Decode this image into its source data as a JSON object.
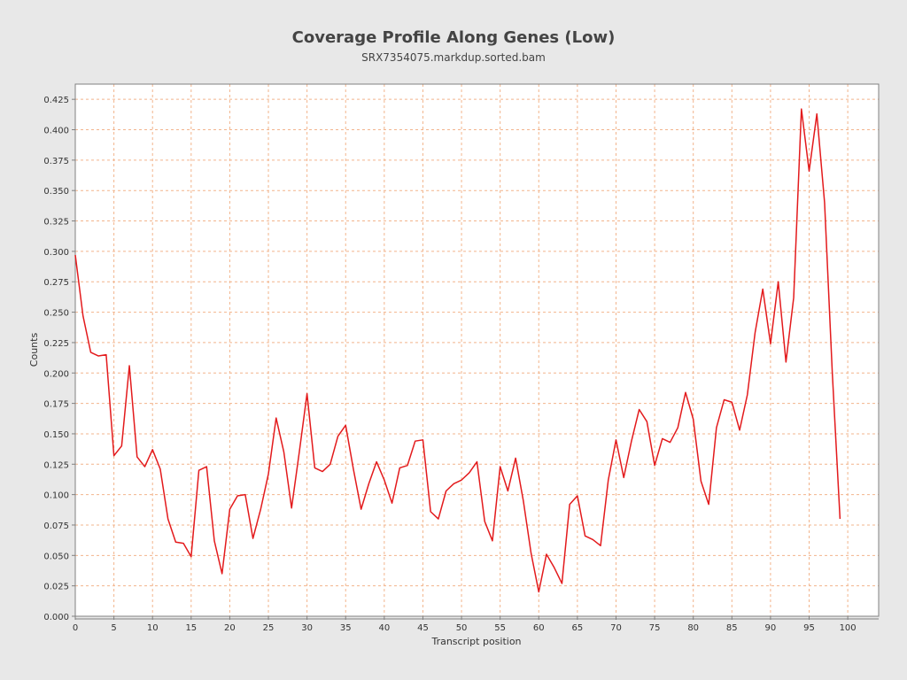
{
  "chart_data": {
    "type": "line",
    "title": "Coverage Profile Along Genes (Low)",
    "subtitle": "SRX7354075.markdup.sorted.bam",
    "xlabel": "Transcript position",
    "ylabel": "Counts",
    "xlim": [
      0,
      104
    ],
    "ylim": [
      0,
      0.4375
    ],
    "xticks": [
      0,
      5,
      10,
      15,
      20,
      25,
      30,
      35,
      40,
      45,
      50,
      55,
      60,
      65,
      70,
      75,
      80,
      85,
      90,
      95,
      100
    ],
    "yticks": [
      "0.000",
      "0.025",
      "0.050",
      "0.075",
      "0.100",
      "0.125",
      "0.150",
      "0.175",
      "0.200",
      "0.225",
      "0.250",
      "0.275",
      "0.300",
      "0.325",
      "0.350",
      "0.375",
      "0.400",
      "0.425"
    ],
    "grid": true,
    "line_color": "#e31a1c",
    "grid_color": "#f2b48c",
    "x": [
      0,
      1,
      2,
      3,
      4,
      5,
      6,
      7,
      8,
      9,
      10,
      11,
      12,
      13,
      14,
      15,
      16,
      17,
      18,
      19,
      20,
      21,
      22,
      23,
      24,
      25,
      26,
      27,
      28,
      29,
      30,
      31,
      32,
      33,
      34,
      35,
      36,
      37,
      38,
      39,
      40,
      41,
      42,
      43,
      44,
      45,
      46,
      47,
      48,
      49,
      50,
      51,
      52,
      53,
      54,
      55,
      56,
      57,
      58,
      59,
      60,
      61,
      62,
      63,
      64,
      65,
      66,
      67,
      68,
      69,
      70,
      71,
      72,
      73,
      74,
      75,
      76,
      77,
      78,
      79,
      80,
      81,
      82,
      83,
      84,
      85,
      86,
      87,
      88,
      89,
      90,
      91,
      92,
      93,
      94,
      95,
      96,
      97,
      98,
      99
    ],
    "values": [
      0.297,
      0.247,
      0.217,
      0.214,
      0.215,
      0.132,
      0.14,
      0.206,
      0.131,
      0.123,
      0.137,
      0.121,
      0.08,
      0.061,
      0.06,
      0.049,
      0.12,
      0.123,
      0.062,
      0.035,
      0.088,
      0.099,
      0.1,
      0.064,
      0.088,
      0.117,
      0.163,
      0.135,
      0.089,
      0.135,
      0.183,
      0.122,
      0.119,
      0.125,
      0.148,
      0.157,
      0.121,
      0.088,
      0.109,
      0.127,
      0.112,
      0.093,
      0.122,
      0.124,
      0.144,
      0.145,
      0.086,
      0.08,
      0.103,
      0.109,
      0.112,
      0.118,
      0.127,
      0.078,
      0.062,
      0.123,
      0.103,
      0.13,
      0.095,
      0.052,
      0.02,
      0.051,
      0.04,
      0.027,
      0.092,
      0.099,
      0.066,
      0.063,
      0.058,
      0.112,
      0.145,
      0.114,
      0.144,
      0.17,
      0.16,
      0.124,
      0.146,
      0.143,
      0.155,
      0.184,
      0.162,
      0.111,
      0.092,
      0.155,
      0.178,
      0.176,
      0.153,
      0.182,
      0.233,
      0.269,
      0.224,
      0.275,
      0.209,
      0.262,
      0.417,
      0.366,
      0.413,
      0.34,
      0.2,
      0.08
    ]
  }
}
